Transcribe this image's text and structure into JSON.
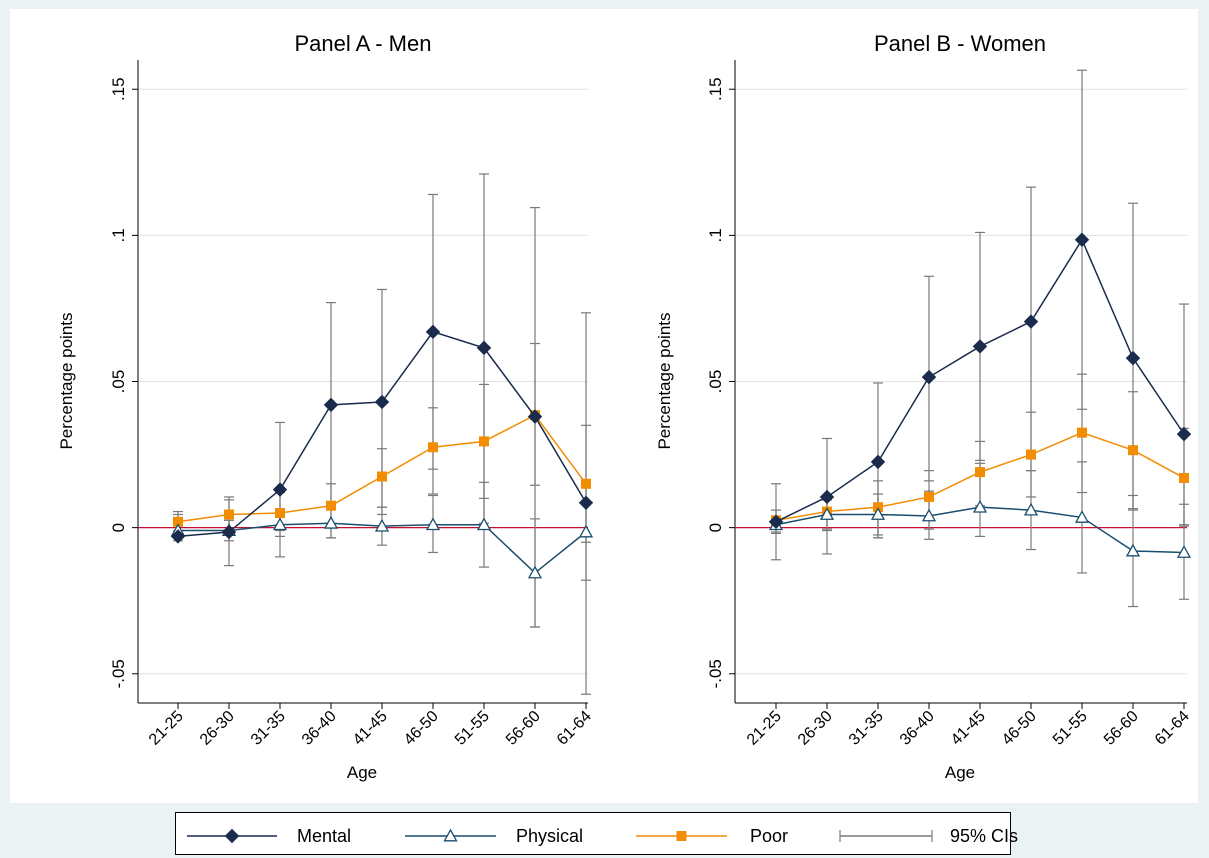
{
  "chart_data": [
    {
      "type": "line",
      "title": "Panel A - Men",
      "xlabel": "Age",
      "ylabel": "Percentage points",
      "categories": [
        "21-25",
        "26-30",
        "31-35",
        "36-40",
        "41-45",
        "46-50",
        "51-55",
        "56-60",
        "61-64"
      ],
      "yticks": [
        -0.05,
        0,
        0.05,
        0.1,
        0.15
      ],
      "ytick_labels": [
        "-.05",
        "0",
        ".05",
        ".1",
        ".15"
      ],
      "ylim": [
        -0.06,
        0.16
      ],
      "reference_line": 0,
      "series": [
        {
          "name": "Mental",
          "color": "#1a2b4c",
          "marker": "diamond",
          "values": [
            -0.003,
            -0.0015,
            0.013,
            0.042,
            0.043,
            0.067,
            0.0615,
            0.038,
            0.0085
          ],
          "ci_low": [
            -0.0045,
            -0.013,
            -0.01,
            0.007,
            0.0045,
            0.02,
            0.0015,
            -0.034,
            -0.057
          ],
          "ci_high": [
            0.0045,
            0.0105,
            0.036,
            0.077,
            0.0815,
            0.114,
            0.121,
            0.1095,
            0.0735
          ]
        },
        {
          "name": "Physical",
          "color": "#1a4d6e",
          "marker": "triangle",
          "values": [
            -0.001,
            -0.001,
            0.001,
            0.0015,
            0.0005,
            0.001,
            0.001,
            -0.0155,
            -0.0015
          ],
          "ci_low": [
            -0.003,
            -0.0045,
            -0.003,
            -0.0035,
            -0.006,
            -0.0085,
            -0.0135,
            -0.034,
            -0.018
          ],
          "ci_high": [
            0.001,
            0.0025,
            0.005,
            0.0065,
            0.007,
            0.011,
            0.0155,
            0.003,
            0.0155
          ]
        },
        {
          "name": "Poor",
          "color": "#f28c00",
          "marker": "square",
          "values": [
            0.002,
            0.0045,
            0.005,
            0.0075,
            0.0175,
            0.0275,
            0.0295,
            0.0385,
            0.015
          ],
          "ci_low": [
            -0.001,
            -0.0015,
            -0.001,
            -0.0035,
            0.007,
            0.0115,
            0.01,
            0.0145,
            -0.005
          ],
          "ci_high": [
            0.0055,
            0.0095,
            0.012,
            0.015,
            0.027,
            0.041,
            0.049,
            0.063,
            0.035
          ]
        }
      ]
    },
    {
      "type": "line",
      "title": "Panel B - Women",
      "xlabel": "Age",
      "ylabel": "Percentage points",
      "categories": [
        "21-25",
        "26-30",
        "31-35",
        "36-40",
        "41-45",
        "46-50",
        "51-55",
        "56-60",
        "61-64"
      ],
      "yticks": [
        -0.05,
        0,
        0.05,
        0.1,
        0.15
      ],
      "ytick_labels": [
        "-.05",
        "0",
        ".05",
        ".1",
        ".15"
      ],
      "ylim": [
        -0.06,
        0.16
      ],
      "reference_line": 0,
      "series": [
        {
          "name": "Mental",
          "color": "#1a2b4c",
          "marker": "diamond",
          "values": [
            0.002,
            0.0105,
            0.0225,
            0.0515,
            0.062,
            0.0705,
            0.0985,
            0.058,
            0.032
          ],
          "ci_low": [
            -0.011,
            -0.009,
            -0.0035,
            0.016,
            0.023,
            0.0195,
            0.0405,
            0.006,
            0.001
          ],
          "ci_high": [
            0.015,
            0.0305,
            0.0495,
            0.086,
            0.101,
            0.1165,
            0.1565,
            0.111,
            0.0765
          ]
        },
        {
          "name": "Physical",
          "color": "#1a4d6e",
          "marker": "triangle",
          "values": [
            0.001,
            0.0045,
            0.0045,
            0.004,
            0.007,
            0.006,
            0.0035,
            -0.008,
            -0.0085
          ],
          "ci_low": [
            -0.002,
            -0.0005,
            -0.0025,
            -0.004,
            -0.003,
            -0.0075,
            -0.0155,
            -0.027,
            -0.0245
          ],
          "ci_high": [
            0.0035,
            0.0095,
            0.0115,
            0.0125,
            0.022,
            0.0195,
            0.0225,
            0.011,
            0.008
          ]
        },
        {
          "name": "Poor",
          "color": "#f28c00",
          "marker": "square",
          "values": [
            0.0025,
            0.0055,
            0.007,
            0.0105,
            0.019,
            0.025,
            0.0325,
            0.0265,
            0.017
          ],
          "ci_low": [
            -0.0015,
            -0.001,
            -0.0035,
            -0.0005,
            0.0075,
            0.0105,
            0.012,
            0.0065,
            0.0005
          ],
          "ci_high": [
            0.006,
            0.0095,
            0.016,
            0.0195,
            0.0295,
            0.0395,
            0.0525,
            0.0465,
            0.034
          ]
        }
      ]
    }
  ],
  "legend": {
    "items": [
      {
        "label": "Mental",
        "marker": "diamond",
        "color": "#1a2b4c"
      },
      {
        "label": "Physical",
        "marker": "triangle",
        "color": "#1a4d6e"
      },
      {
        "label": "Poor",
        "marker": "square",
        "color": "#f28c00"
      },
      {
        "label": "95% CIs",
        "marker": "ci",
        "color": "#7a7a7a"
      }
    ]
  },
  "colors": {
    "zero_line": "#c8102e",
    "ci": "#7a7a7a",
    "grid": "#dde3e6"
  }
}
